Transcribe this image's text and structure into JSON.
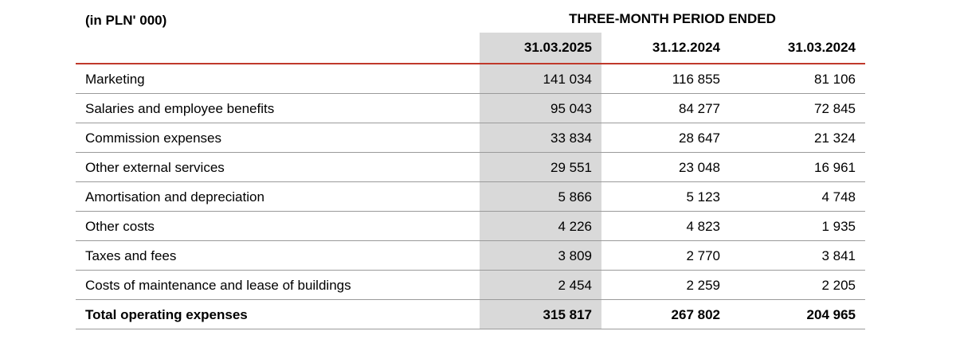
{
  "header": {
    "unit_label": "(in PLN' 000)",
    "period_label": "THREE-MONTH PERIOD ENDED",
    "columns": [
      "31.03.2025",
      "31.12.2024",
      "31.03.2024"
    ]
  },
  "rows": [
    {
      "label": "Marketing",
      "values": [
        "141 034",
        "116 855",
        "81 106"
      ]
    },
    {
      "label": "Salaries and employee benefits",
      "values": [
        "95 043",
        "84 277",
        "72 845"
      ]
    },
    {
      "label": "Commission expenses",
      "values": [
        "33 834",
        "28 647",
        "21 324"
      ]
    },
    {
      "label": "Other external services",
      "values": [
        "29 551",
        "23 048",
        "16 961"
      ]
    },
    {
      "label": "Amortisation and depreciation",
      "values": [
        "5 866",
        "5 123",
        "4 748"
      ]
    },
    {
      "label": "Other costs",
      "values": [
        "4 226",
        "4 823",
        "1 935"
      ]
    },
    {
      "label": "Taxes and fees",
      "values": [
        "3 809",
        "2 770",
        "3 841"
      ]
    },
    {
      "label": "Costs of maintenance and lease of buildings",
      "values": [
        "2 454",
        "2 259",
        "2 205"
      ]
    }
  ],
  "total": {
    "label": "Total operating expenses",
    "values": [
      "315 817",
      "267 802",
      "204 965"
    ]
  },
  "colors": {
    "highlight_column": "#d9d9d9",
    "header_rule": "#c0392b",
    "row_rule": "#9a9a9a"
  }
}
